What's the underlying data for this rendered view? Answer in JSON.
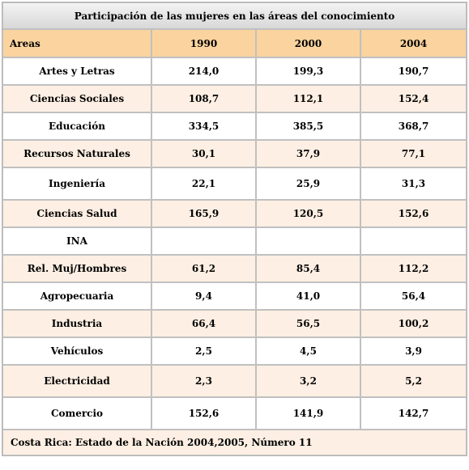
{
  "table": {
    "title": "Participación de las mujeres en las áreas del conocimiento",
    "columns": [
      "Areas",
      "1990",
      "2000",
      "2004"
    ],
    "rows": [
      {
        "area": "Artes y Letras",
        "v1990": "214,0",
        "v2000": "199,3",
        "v2004": "190,7"
      },
      {
        "area": "Ciencias Sociales",
        "v1990": "108,7",
        "v2000": "112,1",
        "v2004": "152,4"
      },
      {
        "area": "Educación",
        "v1990": "334,5",
        "v2000": "385,5",
        "v2004": "368,7"
      },
      {
        "area": "Recursos Naturales",
        "v1990": "30,1",
        "v2000": "37,9",
        "v2004": "77,1"
      },
      {
        "area": "Ingeniería",
        "v1990": "22,1",
        "v2000": "25,9",
        "v2004": "31,3"
      },
      {
        "area": "Ciencias Salud",
        "v1990": "165,9",
        "v2000": "120,5",
        "v2004": "152,6"
      },
      {
        "area": "INA",
        "v1990": "",
        "v2000": "",
        "v2004": ""
      },
      {
        "area": "Rel. Muj/Hombres",
        "v1990": "61,2",
        "v2000": "85,4",
        "v2004": "112,2"
      },
      {
        "area": "Agropecuaria",
        "v1990": "9,4",
        "v2000": "41,0",
        "v2004": "56,4"
      },
      {
        "area": "Industria",
        "v1990": "66,4",
        "v2000": "56,5",
        "v2004": "100,2"
      },
      {
        "area": "Vehículos",
        "v1990": "2,5",
        "v2000": "4,5",
        "v2004": "3,9"
      },
      {
        "area": "Electricidad",
        "v1990": "2,3",
        "v2000": "3,2",
        "v2004": "5,2"
      },
      {
        "area": "Comercio",
        "v1990": "152,6",
        "v2000": "141,9",
        "v2004": "142,7"
      }
    ],
    "source": "Costa Rica: Estado de la Nación 2004,2005, Número 11"
  },
  "colors": {
    "header": "#fad39e",
    "peach_row": "#fdefe3",
    "white_row": "#ffffff",
    "border": "#c0c0c0"
  }
}
